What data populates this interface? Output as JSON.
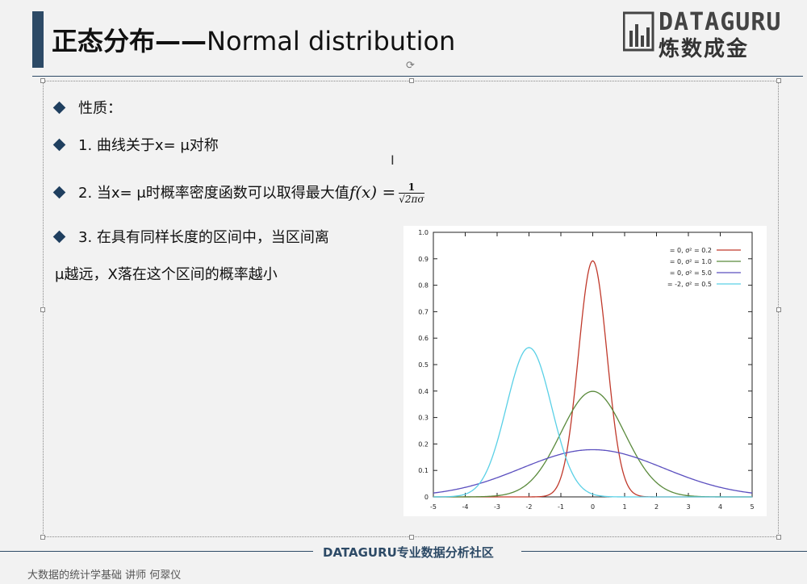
{
  "slide": {
    "title_cn": "正态分布——",
    "title_en": "Normal distribution",
    "logo": {
      "brand": "DATAGURU",
      "cn": "炼数成金"
    },
    "bullets": [
      "性质：",
      "1. 曲线关于x= μ对称",
      "2. 当x= μ时概率密度函数可以取得最大值",
      "3. 在具有同样长度的区间中，当区间离"
    ],
    "bullet3_cont": "μ越远，X落在这个区间的概率越小",
    "formula": {
      "lhs": "f(x) =",
      "num": "1",
      "den": "√2πσ"
    },
    "footer": "DATAGURU专业数据分析社区",
    "course": "大数据的统计学基础   讲师 何翠仪"
  },
  "colors": {
    "accent": "#2d4a66",
    "series": [
      "#c0392b",
      "#5a8a3c",
      "#5b4fbf",
      "#5ad0e6"
    ]
  },
  "chart_data": {
    "type": "line",
    "xlim": [
      -5,
      5
    ],
    "ylim": [
      0,
      1.0
    ],
    "xticks": [
      "-5",
      "-4",
      "-3",
      "-2",
      "-1",
      "0",
      "1",
      "2",
      "3",
      "4",
      "5"
    ],
    "yticks": [
      "0",
      "0.1",
      "0.2",
      "0.3",
      "0.4",
      "0.5",
      "0.6",
      "0.7",
      "0.8",
      "0.9",
      "1.0"
    ],
    "legend_position": "top-right",
    "series": [
      {
        "name": "= 0, σ² = 0.2",
        "mu": 0,
        "var": 0.2
      },
      {
        "name": "= 0, σ² = 1.0",
        "mu": 0,
        "var": 1.0
      },
      {
        "name": "= 0, σ² = 5.0",
        "mu": 0,
        "var": 5.0
      },
      {
        "name": "= -2, σ² = 0.5",
        "mu": -2,
        "var": 0.5
      }
    ]
  }
}
